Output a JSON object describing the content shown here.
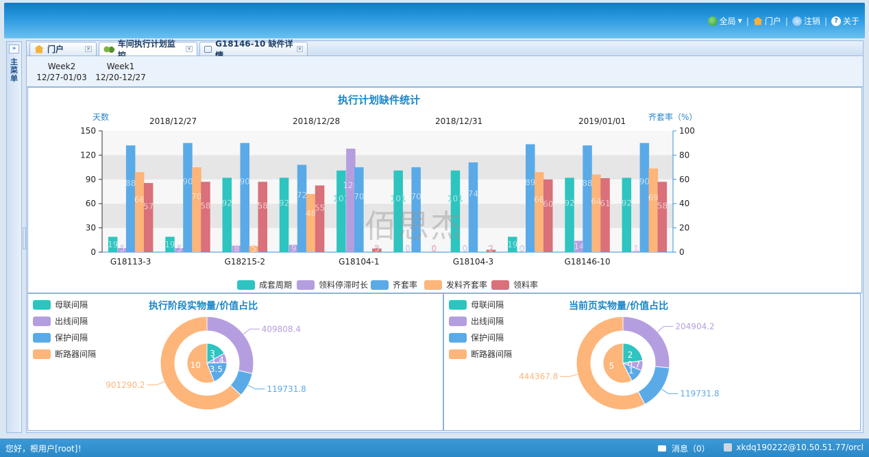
{
  "header": {
    "nav": [
      {
        "label": "全局",
        "icon": "globe-icon"
      },
      {
        "label": "门户",
        "icon": "home-icon"
      },
      {
        "label": "注销",
        "icon": "logout-icon"
      },
      {
        "label": "关于",
        "icon": "about-icon"
      }
    ]
  },
  "sidebar": {
    "expand": "»",
    "label": "主菜单"
  },
  "tabs": [
    {
      "label": "门户",
      "icon": "home-icon"
    },
    {
      "label": "车间执行计划监控",
      "icon": "gear-icon"
    },
    {
      "label": "G18146-10 缺件详情",
      "icon": "message-icon"
    }
  ],
  "weeks": [
    {
      "name": "Week2",
      "range": "12/27-01/03"
    },
    {
      "name": "Week1",
      "range": "12/20-12/27"
    }
  ],
  "watermark": "佰思杰",
  "chart_data": [
    {
      "type": "bar",
      "title": "执行计划缺件统计",
      "ylabel": "天数",
      "y2label": "齐套率（%）",
      "ylim": [
        0,
        150
      ],
      "y2lim": [
        0,
        100
      ],
      "yticks": [
        0,
        30,
        60,
        90,
        120,
        150
      ],
      "y2ticks": [
        0,
        20,
        40,
        60,
        80,
        100
      ],
      "dates": [
        "2018/12/27",
        "2018/12/28",
        "2018/12/31",
        "2019/01/01"
      ],
      "categories": [
        "G18113-3",
        "",
        "G18215-2",
        "",
        "G18104-1",
        "",
        "G18104-3",
        "",
        "G18146-10",
        ""
      ],
      "grid": true,
      "legend_position": "bottom",
      "series": [
        {
          "name": "成套周期",
          "axis": "left",
          "color": "#2ec4c0",
          "values": [
            19,
            19,
            92,
            92,
            101,
            101,
            101,
            19,
            92,
            92
          ]
        },
        {
          "name": "领料停滞时长",
          "axis": "left",
          "color": "#b59ee0",
          "values": [
            5,
            5,
            8,
            9,
            128,
            0,
            0,
            0,
            14,
            1
          ]
        },
        {
          "name": "齐套率",
          "axis": "right",
          "color": "#5aaae8",
          "values": [
            88,
            90,
            90,
            72,
            70,
            70,
            74,
            89,
            88,
            90
          ]
        },
        {
          "name": "发料齐套率",
          "axis": "right",
          "color": "#fdb57a",
          "values": [
            66,
            70,
            5,
            48,
            null,
            null,
            null,
            66,
            64,
            69
          ]
        },
        {
          "name": "领料率",
          "axis": "right",
          "color": "#d9707a",
          "values": [
            57,
            58,
            58,
            55,
            3,
            0,
            2,
            60,
            61,
            58
          ]
        }
      ]
    },
    {
      "type": "pie",
      "title": "执行阶段实物量/价值占比",
      "legend": [
        "母联间隔",
        "出线间隔",
        "保护间隔",
        "断路器间隔"
      ],
      "colors": [
        "#2ec4c0",
        "#b59ee0",
        "#5aaae8",
        "#fdb57a"
      ],
      "inner": [
        3,
        1.4,
        3.5,
        10
      ],
      "outer": [
        0,
        409808.4,
        119731.8,
        901290.2
      ],
      "outer_labels": [
        "",
        "409808.4",
        "119731.8",
        "901290.2"
      ]
    },
    {
      "type": "pie",
      "title": "当前页实物量/价值占比",
      "legend": [
        "母联间隔",
        "出线间隔",
        "保护间隔",
        "断路器间隔"
      ],
      "colors": [
        "#2ec4c0",
        "#b59ee0",
        "#5aaae8",
        "#fdb57a"
      ],
      "inner": [
        2,
        0.7,
        1,
        5
      ],
      "outer": [
        0,
        204904.2,
        119731.8,
        444367.8
      ],
      "outer_labels": [
        "",
        "204904.2",
        "119731.8",
        "444367.8"
      ]
    }
  ],
  "status": {
    "greeting": "您好，根用户[root]！",
    "messages": "消息（0）",
    "connection": "xkdq190222@10.50.51.77/orcl"
  }
}
